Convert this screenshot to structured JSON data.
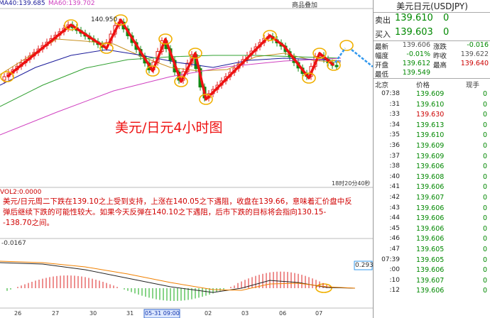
{
  "toolbar": {
    "overlay_button": "商品叠加"
  },
  "chart": {
    "ma_labels": [
      {
        "text": "MA40:139.685",
        "color": "#1a1a9a"
      },
      {
        "text": "MA60:139.702",
        "color": "#d040c0"
      }
    ],
    "peak_label": "140.950",
    "watermark": "美元/日元4小时图",
    "clock": "18时20分40秒",
    "volume_label": "VOL2:0.0000",
    "commentary": "美元/日元周二下跌在139.10之上受到支持，上涨在140.05之下遇阻，收盘在139.66，意味着汇价盘中反弹后继续下跌的可能性较大。如果今天反弹在140.10之下遇阻，后市下跌的目标将会指向130.15--138.70之间。",
    "macd_label": "-0.0167",
    "macd_marker": "0.293",
    "x_labels": [
      "26",
      "27",
      "30",
      "31",
      "05-31 09:00",
      "02",
      "03",
      "06",
      "07"
    ]
  },
  "quote": {
    "title": "美元日元(USDJPY)",
    "book": [
      {
        "label": "卖出",
        "price": "139.610",
        "qty": "0"
      },
      {
        "label": "买入",
        "price": "139.603",
        "qty": "0"
      }
    ],
    "stats": [
      [
        {
          "label": "最新",
          "value": "139.606",
          "color": "#555"
        },
        {
          "label": "涨跌",
          "value": "-0.016",
          "color": "#080"
        }
      ],
      [
        {
          "label": "幅度",
          "value": "-0.01%",
          "color": "#080"
        },
        {
          "label": "昨收",
          "value": "139.622",
          "color": "#555"
        }
      ],
      [
        {
          "label": "开盘",
          "value": "139.612",
          "color": "#080"
        },
        {
          "label": "最高",
          "value": "139.640",
          "color": "#c00"
        }
      ],
      [
        {
          "label": "最低",
          "value": "139.549",
          "color": "#080"
        }
      ]
    ],
    "ticks_header": [
      "北京",
      "价格",
      "现手"
    ],
    "ticks": [
      {
        "time": "07:38",
        "price": "139.609",
        "qty": "0",
        "color": "#080"
      },
      {
        "time": ":31",
        "price": "139.610",
        "qty": "0",
        "color": "#080"
      },
      {
        "time": ":33",
        "price": "139.630",
        "qty": "0",
        "color": "#c00"
      },
      {
        "time": ":34",
        "price": "139.613",
        "qty": "0",
        "color": "#080"
      },
      {
        "time": ":35",
        "price": "139.610",
        "qty": "0",
        "color": "#080"
      },
      {
        "time": ":36",
        "price": "139.609",
        "qty": "0",
        "color": "#080"
      },
      {
        "time": ":37",
        "price": "139.609",
        "qty": "0",
        "color": "#080"
      },
      {
        "time": ":38",
        "price": "139.606",
        "qty": "0",
        "color": "#080"
      },
      {
        "time": ":40",
        "price": "139.608",
        "qty": "0",
        "color": "#080"
      },
      {
        "time": ":41",
        "price": "139.606",
        "qty": "0",
        "color": "#080"
      },
      {
        "time": ":42",
        "price": "139.607",
        "qty": "0",
        "color": "#080"
      },
      {
        "time": ":43",
        "price": "139.606",
        "qty": "0",
        "color": "#080"
      },
      {
        "time": ":44",
        "price": "139.606",
        "qty": "0",
        "color": "#080"
      },
      {
        "time": ":45",
        "price": "139.606",
        "qty": "0",
        "color": "#080"
      },
      {
        "time": ":46",
        "price": "139.606",
        "qty": "0",
        "color": "#080"
      },
      {
        "time": ":47",
        "price": "139.605",
        "qty": "0",
        "color": "#080"
      },
      {
        "time": "07:39",
        "price": "139.605",
        "qty": "0",
        "color": "#080"
      },
      {
        "time": ":00",
        "price": "139.606",
        "qty": "0",
        "color": "#080"
      },
      {
        "time": ":10",
        "price": "139.607",
        "qty": "0",
        "color": "#080"
      },
      {
        "time": ":12",
        "price": "139.606",
        "qty": "0",
        "color": "#080"
      }
    ]
  }
}
